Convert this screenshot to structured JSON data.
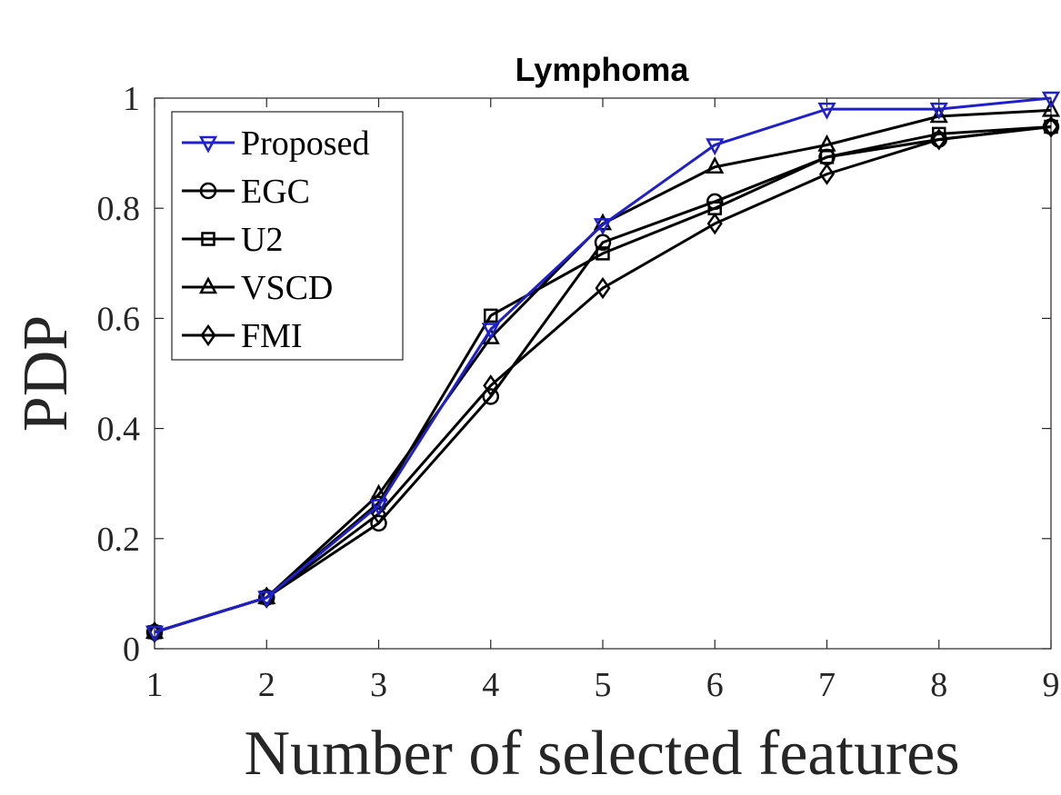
{
  "chart_data": {
    "type": "line",
    "title": "Lymphoma",
    "xlabel": "Number of selected features",
    "ylabel": "PDP",
    "x": [
      1,
      2,
      3,
      4,
      5,
      6,
      7,
      8,
      9
    ],
    "xlim": [
      1,
      9
    ],
    "ylim": [
      0,
      1
    ],
    "xticks": [
      "1",
      "2",
      "3",
      "4",
      "5",
      "6",
      "7",
      "8",
      "9"
    ],
    "yticks": [
      {
        "value": 0,
        "label": "0"
      },
      {
        "value": 0.2,
        "label": "0.2"
      },
      {
        "value": 0.4,
        "label": "0.4"
      },
      {
        "value": 0.6,
        "label": "0.6"
      },
      {
        "value": 0.8,
        "label": "0.8"
      },
      {
        "value": 1,
        "label": "1"
      }
    ],
    "grid": false,
    "legend_position": "top-left",
    "series": [
      {
        "name": "Proposed",
        "marker": "triangle-down",
        "color": "#1f1fcc",
        "values": [
          0.03,
          0.093,
          0.26,
          0.58,
          0.77,
          0.915,
          0.98,
          0.98,
          1.0
        ]
      },
      {
        "name": "EGC",
        "marker": "circle",
        "color": "#000000",
        "values": [
          0.03,
          0.093,
          0.228,
          0.458,
          0.738,
          0.812,
          0.893,
          0.925,
          0.948
        ]
      },
      {
        "name": "U2",
        "marker": "square",
        "color": "#000000",
        "values": [
          0.03,
          0.093,
          0.265,
          0.605,
          0.718,
          0.8,
          0.893,
          0.935,
          0.948
        ]
      },
      {
        "name": "VSCD",
        "marker": "triangle-up",
        "color": "#000000",
        "values": [
          0.03,
          0.093,
          0.28,
          0.565,
          0.772,
          0.875,
          0.915,
          0.967,
          0.978
        ]
      },
      {
        "name": "FMI",
        "marker": "diamond",
        "color": "#000000",
        "values": [
          0.03,
          0.093,
          0.245,
          0.478,
          0.655,
          0.772,
          0.862,
          0.925,
          0.948
        ]
      }
    ]
  }
}
